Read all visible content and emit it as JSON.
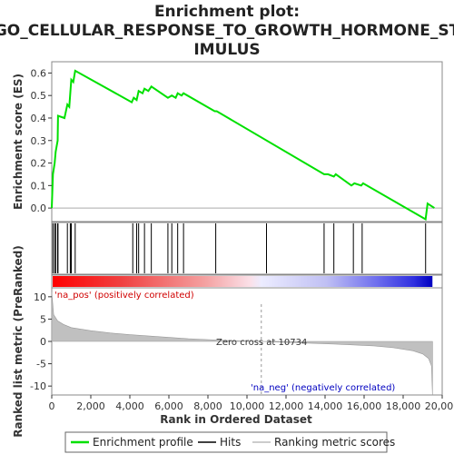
{
  "chart_data": {
    "type": "line",
    "title_lines": [
      "Enrichment plot:",
      "GO_CELLULAR_RESPONSE_TO_GROWTH_HORMONE_ST",
      "IMULUS"
    ],
    "xlabel": "Rank in Ordered Dataset",
    "ylabel_top": "Enrichment score (ES)",
    "ylabel_bottom": "Ranked list metric (PreRanked)",
    "xlim": [
      0,
      20000
    ],
    "x_ticks": [
      0,
      2000,
      4000,
      6000,
      8000,
      10000,
      12000,
      14000,
      16000,
      18000,
      20000
    ],
    "x_tick_labels": [
      "0",
      "2,000",
      "4,000",
      "6,000",
      "8,000",
      "10,000",
      "12,000",
      "14,000",
      "16,000",
      "18,000",
      "20,000"
    ],
    "es_ylim": [
      -0.06,
      0.65
    ],
    "es_ticks": [
      0.0,
      0.1,
      0.2,
      0.3,
      0.4,
      0.5,
      0.6
    ],
    "es_tick_labels": [
      "0.0",
      "0.1",
      "0.2",
      "0.3",
      "0.4",
      "0.5",
      "0.6"
    ],
    "metric_ylim": [
      -12,
      12
    ],
    "metric_ticks": [
      10,
      5,
      0,
      -5,
      -10
    ],
    "metric_tick_labels": [
      "10",
      "5",
      "0",
      "-5",
      "-10"
    ],
    "n_genes": 19500,
    "zero_cross": 10734,
    "zero_cross_label": "Zero cross at 10734",
    "pos_label": "'na_pos' (positively correlated)",
    "neg_label": "'na_neg' (negatively correlated)",
    "series": [
      {
        "name": "Enrichment profile",
        "color": "#00e000",
        "points": [
          [
            0,
            0.0
          ],
          [
            60,
            0.15
          ],
          [
            150,
            0.2
          ],
          [
            200,
            0.25
          ],
          [
            300,
            0.3
          ],
          [
            320,
            0.41
          ],
          [
            650,
            0.4
          ],
          [
            800,
            0.46
          ],
          [
            900,
            0.45
          ],
          [
            950,
            0.51
          ],
          [
            1000,
            0.57
          ],
          [
            1100,
            0.56
          ],
          [
            1200,
            0.61
          ],
          [
            4100,
            0.47
          ],
          [
            4200,
            0.49
          ],
          [
            4350,
            0.48
          ],
          [
            4450,
            0.52
          ],
          [
            4650,
            0.51
          ],
          [
            4750,
            0.53
          ],
          [
            4950,
            0.52
          ],
          [
            5100,
            0.54
          ],
          [
            5950,
            0.49
          ],
          [
            6150,
            0.5
          ],
          [
            6350,
            0.49
          ],
          [
            6450,
            0.51
          ],
          [
            6650,
            0.5
          ],
          [
            6750,
            0.51
          ],
          [
            8350,
            0.43
          ],
          [
            8450,
            0.43
          ],
          [
            13950,
            0.15
          ],
          [
            14150,
            0.15
          ],
          [
            14450,
            0.14
          ],
          [
            14550,
            0.15
          ],
          [
            15350,
            0.1
          ],
          [
            15500,
            0.11
          ],
          [
            15850,
            0.1
          ],
          [
            15950,
            0.11
          ],
          [
            19150,
            -0.05
          ],
          [
            19250,
            0.02
          ],
          [
            19600,
            0.0
          ]
        ]
      }
    ],
    "hits": [
      60,
      150,
      200,
      300,
      320,
      800,
      950,
      1000,
      1200,
      4150,
      4350,
      4450,
      4750,
      5100,
      5950,
      6150,
      6450,
      6750,
      8400,
      11000,
      13950,
      14450,
      15450,
      15900,
      19150
    ],
    "metric_profile": [
      [
        0,
        11
      ],
      [
        100,
        6
      ],
      [
        300,
        4.6
      ],
      [
        600,
        3.8
      ],
      [
        1000,
        3.1
      ],
      [
        2000,
        2.4
      ],
      [
        3000,
        1.9
      ],
      [
        4000,
        1.5
      ],
      [
        5000,
        1.2
      ],
      [
        6000,
        0.9
      ],
      [
        7000,
        0.6
      ],
      [
        8000,
        0.4
      ],
      [
        9000,
        0.2
      ],
      [
        10000,
        0.07
      ],
      [
        10734,
        0
      ],
      [
        11500,
        -0.15
      ],
      [
        12500,
        -0.3
      ],
      [
        13500,
        -0.45
      ],
      [
        14500,
        -0.6
      ],
      [
        15500,
        -0.8
      ],
      [
        16500,
        -1.0
      ],
      [
        17500,
        -1.4
      ],
      [
        18500,
        -2.1
      ],
      [
        19000,
        -2.8
      ],
      [
        19300,
        -3.8
      ],
      [
        19450,
        -5.5
      ],
      [
        19500,
        -12
      ]
    ],
    "legend": [
      {
        "label": "Enrichment profile",
        "color": "#00e000"
      },
      {
        "label": "Hits",
        "color": "#000000"
      },
      {
        "label": "Ranking metric scores",
        "color": "#bbbbbb"
      }
    ]
  }
}
